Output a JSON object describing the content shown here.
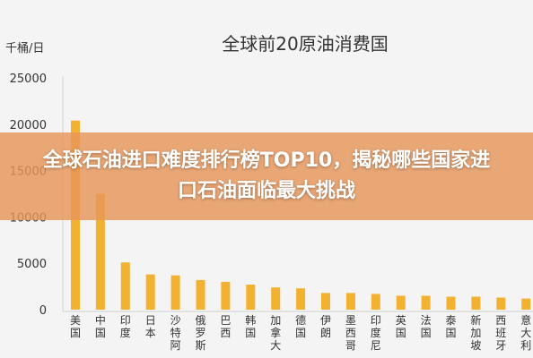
{
  "banner": {
    "headline": "全球石油进口难度排行榜TOP10，揭秘哪些国家进口石油面临最大挑战"
  },
  "chart_data": {
    "type": "bar",
    "title": "全球前20原油消费国",
    "ylabel": "千桶/日",
    "ylim": [
      0,
      25000
    ],
    "yticks": [
      0,
      5000,
      10000,
      15000,
      20000,
      25000
    ],
    "categories": [
      "美国",
      "中国",
      "印度",
      "日本",
      "沙特阿",
      "俄罗斯",
      "巴西",
      "韩国",
      "加拿大",
      "德国",
      "伊朗",
      "墨西哥",
      "印度尼",
      "英国",
      "法国",
      "泰国",
      "新加坡",
      "西班牙",
      "意大利"
    ],
    "values": [
      20400,
      12500,
      5100,
      3800,
      3700,
      3200,
      3000,
      2700,
      2400,
      2300,
      1800,
      1800,
      1700,
      1500,
      1500,
      1400,
      1400,
      1300,
      1200
    ],
    "bar_color": "#f2b130",
    "grid": false
  }
}
